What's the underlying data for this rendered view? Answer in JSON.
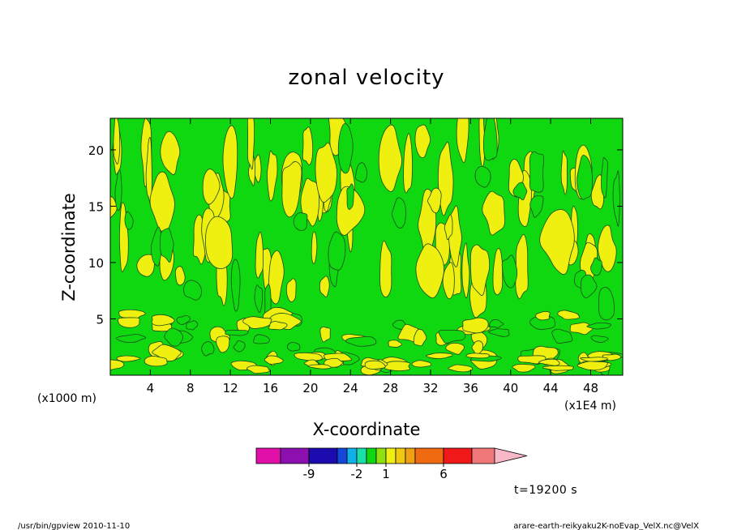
{
  "chart_data": {
    "type": "heatmap",
    "title": "zonal velocity",
    "xlabel": "X-coordinate",
    "ylabel": "Z-coordinate",
    "x_unit": "(x1E4 m)",
    "y_unit": "(x1000 m)",
    "x_ticks": [
      4,
      8,
      12,
      16,
      20,
      24,
      28,
      32,
      36,
      40,
      44,
      48
    ],
    "y_ticks": [
      5,
      10,
      15,
      20
    ],
    "xlim": [
      0,
      51.2
    ],
    "ylim": [
      0,
      22.8
    ],
    "grid": false,
    "legend": "colorbar-bottom",
    "colorbar": {
      "colors": [
        "#e010a8",
        "#8c10b0",
        "#1c0cb0",
        "#1448d8",
        "#10b0e8",
        "#18e0a8",
        "#10d810",
        "#90e010",
        "#f0f010",
        "#f0c810",
        "#f0a010",
        "#f06a10",
        "#f01818",
        "#f07878",
        "#f8b8c8"
      ],
      "labels": [
        "-9",
        "-2",
        "1",
        "6"
      ]
    },
    "dominant_levels": [
      "green (~0)",
      "yellow (~1)"
    ],
    "time_label": "t=19200 s"
  },
  "footer": {
    "left": "/usr/bin/gpview   2010-11-10",
    "right": "arare-earth-reikyaku2K-noEvap_VelX.nc@VelX"
  }
}
